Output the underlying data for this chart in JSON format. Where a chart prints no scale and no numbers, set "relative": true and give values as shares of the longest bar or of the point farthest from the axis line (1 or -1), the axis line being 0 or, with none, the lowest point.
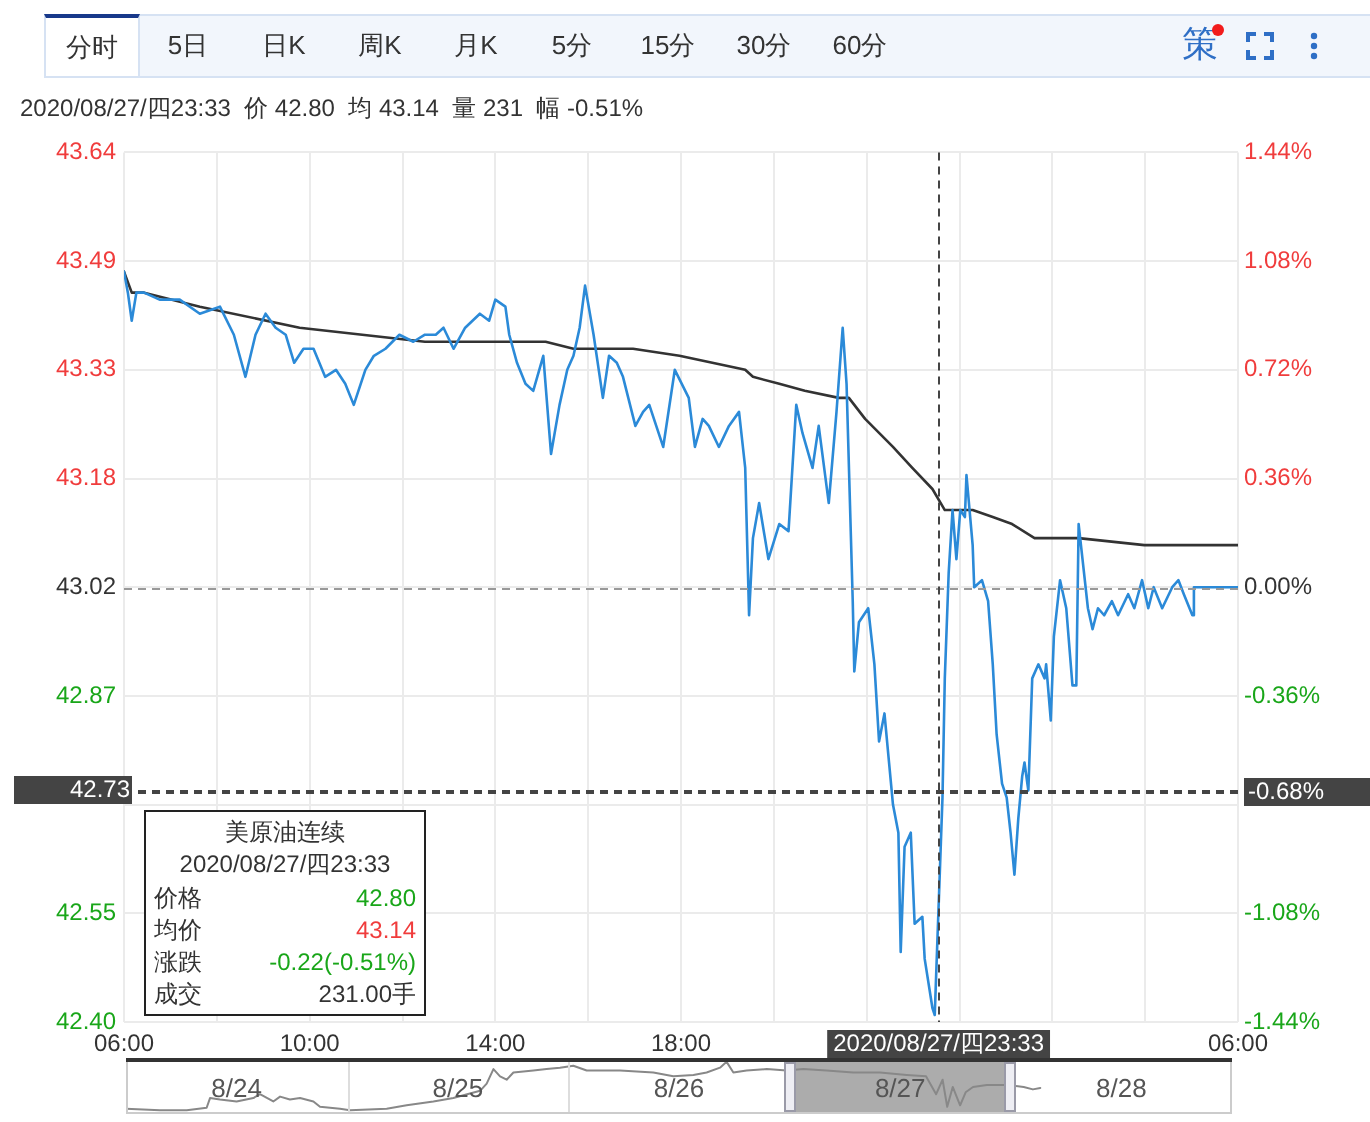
{
  "chart_data": [
    {
      "type": "line",
      "series": [
        {
          "color": "#2b8ad8",
          "x": [
            "2020-08-27T06:00",
            "2020-08-27T06:05",
            "2020-08-27T06:10",
            "2020-08-27T06:16",
            "2020-08-27T06:26",
            "2020-08-27T06:46",
            "2020-08-27T07:12",
            "2020-08-27T07:38",
            "2020-08-27T08:04",
            "2020-08-27T08:22",
            "2020-08-27T08:37",
            "2020-08-27T08:50",
            "2020-08-27T09:03",
            "2020-08-27T09:16",
            "2020-08-27T09:29",
            "2020-08-27T09:40",
            "2020-08-27T09:52",
            "2020-08-27T10:05",
            "2020-08-27T10:20",
            "2020-08-27T10:34",
            "2020-08-27T10:46",
            "2020-08-27T10:57",
            "2020-08-27T11:12",
            "2020-08-27T11:23",
            "2020-08-27T11:38",
            "2020-08-27T11:56",
            "2020-08-27T12:14",
            "2020-08-27T12:29",
            "2020-08-27T12:43",
            "2020-08-27T12:53",
            "2020-08-27T13:06",
            "2020-08-27T13:21",
            "2020-08-27T13:40",
            "2020-08-27T13:52",
            "2020-08-27T14:00",
            "2020-08-27T14:13",
            "2020-08-27T14:18",
            "2020-08-27T14:28",
            "2020-08-27T14:39",
            "2020-08-27T14:49",
            "2020-08-27T15:02",
            "2020-08-27T15:12",
            "2020-08-27T15:23",
            "2020-08-27T15:33",
            "2020-08-27T15:41",
            "2020-08-27T15:49",
            "2020-08-27T15:56",
            "2020-08-27T16:07",
            "2020-08-27T16:19",
            "2020-08-27T16:27",
            "2020-08-27T16:37",
            "2020-08-27T16:45",
            "2020-08-27T17:01",
            "2020-08-27T17:11",
            "2020-08-27T17:19",
            "2020-08-27T17:37",
            "2020-08-27T17:52",
            "2020-08-27T18:10",
            "2020-08-27T18:18",
            "2020-08-27T18:28",
            "2020-08-27T18:36",
            "2020-08-27T18:49",
            "2020-08-27T19:02",
            "2020-08-27T19:15",
            "2020-08-27T19:23",
            "2020-08-27T19:28",
            "2020-08-27T19:33",
            "2020-08-27T19:41",
            "2020-08-27T19:53",
            "2020-08-27T20:07",
            "2020-08-27T20:19",
            "2020-08-27T20:29",
            "2020-08-27T20:37",
            "2020-08-27T20:50",
            "2020-08-27T20:58",
            "2020-08-27T21:11",
            "2020-08-27T21:21",
            "2020-08-27T21:29",
            "2020-08-27T21:34",
            "2020-08-27T21:42",
            "2020-08-27T21:44",
            "2020-08-27T21:50",
            "2020-08-27T22:02",
            "2020-08-27T22:10",
            "2020-08-27T22:16",
            "2020-08-27T22:23",
            "2020-08-27T22:34",
            "2020-08-27T22:41",
            "2020-08-27T22:44",
            "2020-08-27T22:49",
            "2020-08-27T22:57",
            "2020-08-27T23:02",
            "2020-08-27T23:12",
            "2020-08-27T23:15",
            "2020-08-27T23:25",
            "2020-08-27T23:28",
            "2020-08-27T23:38",
            "2020-08-27T23:41",
            "2020-08-27T23:46",
            "2020-08-27T23:51",
            "2020-08-27T23:56",
            "2020-08-28T00:01",
            "2020-08-28T00:07",
            "2020-08-28T00:09",
            "2020-08-28T00:17",
            "2020-08-28T00:19",
            "2020-08-28T00:29",
            "2020-08-28T00:37",
            "2020-08-28T00:43",
            "2020-08-28T00:48",
            "2020-08-28T00:55",
            "2020-08-28T01:01",
            "2020-08-28T01:06",
            "2020-08-28T01:11",
            "2020-08-28T01:16",
            "2020-08-28T01:21",
            "2020-08-28T01:24",
            "2020-08-28T01:29",
            "2020-08-28T01:34",
            "2020-08-28T01:42",
            "2020-08-28T01:50",
            "2020-08-28T01:52",
            "2020-08-28T01:58",
            "2020-08-28T02:02",
            "2020-08-28T02:10",
            "2020-08-28T02:18",
            "2020-08-28T02:26",
            "2020-08-28T02:31",
            "2020-08-28T02:34",
            "2020-08-28T02:39",
            "2020-08-28T02:46",
            "2020-08-28T02:52",
            "2020-08-28T02:59",
            "2020-08-28T03:07",
            "2020-08-28T03:17",
            "2020-08-28T03:25",
            "2020-08-28T03:38",
            "2020-08-28T03:46",
            "2020-08-28T03:56",
            "2020-08-28T04:04",
            "2020-08-28T04:11",
            "2020-08-28T04:22",
            "2020-08-28T04:35",
            "2020-08-28T04:43",
            "2020-08-28T04:50",
            "2020-08-28T05:01",
            "2020-08-28T05:03",
            "2020-08-28T05:14",
            "2020-08-28T06:00"
          ],
          "values": [
            43.47,
            43.44,
            43.4,
            43.44,
            43.44,
            43.43,
            43.43,
            43.41,
            43.42,
            43.38,
            43.32,
            43.38,
            43.41,
            43.39,
            43.38,
            43.34,
            43.36,
            43.36,
            43.32,
            43.33,
            43.31,
            43.28,
            43.33,
            43.35,
            43.36,
            43.38,
            43.37,
            43.38,
            43.38,
            43.39,
            43.36,
            43.39,
            43.41,
            43.4,
            43.43,
            43.42,
            43.38,
            43.34,
            43.31,
            43.3,
            43.35,
            43.21,
            43.28,
            43.33,
            43.35,
            43.39,
            43.45,
            43.38,
            43.29,
            43.35,
            43.34,
            43.32,
            43.25,
            43.27,
            43.28,
            43.22,
            43.33,
            43.29,
            43.22,
            43.26,
            43.25,
            43.22,
            43.25,
            43.27,
            43.19,
            42.98,
            43.09,
            43.14,
            43.06,
            43.11,
            43.1,
            43.28,
            43.24,
            43.19,
            43.25,
            43.14,
            43.27,
            43.39,
            43.31,
            43.0,
            42.9,
            42.97,
            42.99,
            42.91,
            42.8,
            42.84,
            42.71,
            42.67,
            42.5,
            42.65,
            42.67,
            42.54,
            42.55,
            42.49,
            42.42,
            42.41,
            42.72,
            42.89,
            43.04,
            43.13,
            43.06,
            43.13,
            43.12,
            43.18,
            43.08,
            43.02,
            43.03,
            43.0,
            42.91,
            42.81,
            42.74,
            42.72,
            42.67,
            42.61,
            42.69,
            42.75,
            42.77,
            42.73,
            42.89,
            42.91,
            42.89,
            42.91,
            42.83,
            42.95,
            43.03,
            42.99,
            42.88,
            42.88,
            43.11,
            43.06,
            42.99,
            42.96,
            42.99,
            42.98,
            43.0,
            42.98,
            43.01,
            42.99,
            43.03,
            42.99,
            43.02,
            42.99,
            43.02,
            43.03,
            43.01,
            42.98,
            43.02,
            43.02,
            43.02
          ]
        },
        {
          "color": "#333333",
          "x": [
            "2020-08-27T06:00",
            "2020-08-27T06:10",
            "2020-08-27T06:26",
            "2020-08-27T07:38",
            "2020-08-27T09:47",
            "2020-08-27T12:29",
            "2020-08-27T14:13",
            "2020-08-27T15:05",
            "2020-08-27T15:41",
            "2020-08-27T16:58",
            "2020-08-27T17:58",
            "2020-08-27T19:23",
            "2020-08-27T19:33",
            "2020-08-27T20:07",
            "2020-08-27T20:40",
            "2020-08-27T21:24",
            "2020-08-27T21:37",
            "2020-08-27T21:58",
            "2020-08-27T22:34",
            "2020-08-27T22:59",
            "2020-08-27T23:25",
            "2020-08-27T23:41",
            "2020-08-28T00:17",
            "2020-08-28T00:43",
            "2020-08-28T01:08",
            "2020-08-28T01:37",
            "2020-08-28T02:34",
            "2020-08-28T03:59",
            "2020-08-28T06:00"
          ],
          "values": [
            43.47,
            43.44,
            43.44,
            43.42,
            43.39,
            43.37,
            43.37,
            43.37,
            43.36,
            43.36,
            43.35,
            43.33,
            43.32,
            43.31,
            43.3,
            43.29,
            43.29,
            43.26,
            43.22,
            43.19,
            43.16,
            43.13,
            43.13,
            43.12,
            43.11,
            43.09,
            43.09,
            43.08,
            43.08
          ]
        }
      ],
      "xlim": [
        "2020-08-27T06:00",
        "2020-08-28T06:00"
      ],
      "xticks": [
        {
          "value": "2020-08-27T06:00",
          "label": "06:00"
        },
        {
          "value": "2020-08-27T08:00",
          "label": null
        },
        {
          "value": "2020-08-27T10:00",
          "label": "10:00"
        },
        {
          "value": "2020-08-27T12:00",
          "label": null
        },
        {
          "value": "2020-08-27T14:00",
          "label": "14:00"
        },
        {
          "value": "2020-08-27T16:00",
          "label": null
        },
        {
          "value": "2020-08-27T18:00",
          "label": "18:00"
        },
        {
          "value": "2020-08-27T20:00",
          "label": null
        },
        {
          "value": "2020-08-27T22:00",
          "label": null
        },
        {
          "value": "2020-08-28T00:00",
          "label": null
        },
        {
          "value": "2020-08-28T02:00",
          "label": null
        },
        {
          "value": "2020-08-28T04:00",
          "label": null
        },
        {
          "value": "2020-08-28T06:00",
          "label": "06:00"
        }
      ],
      "ylim": [
        42.4,
        43.64
      ],
      "yticks": [
        {
          "value": 42.4,
          "label": "42.40"
        },
        {
          "value": 42.555,
          "label": "42.55"
        },
        {
          "value": 42.71,
          "label": null
        },
        {
          "value": 42.865,
          "label": "42.87"
        },
        43.02,
        {
          "value": 43.175,
          "label": "43.18"
        },
        43.33,
        {
          "value": 43.485,
          "label": "43.49"
        },
        43.64
      ],
      "y2lim": [
        -1.44,
        1.44
      ],
      "y2ticks": [
        {
          "value": -1.44,
          "label": "-1.44%"
        },
        {
          "value": -1.08,
          "label": "-1.08%"
        },
        {
          "value": -0.72,
          "label": null
        },
        {
          "value": -0.36,
          "label": "-0.36%"
        },
        {
          "value": 0,
          "label": "0.00%"
        },
        {
          "value": 0.36,
          "label": "0.36%"
        },
        {
          "value": 0.72,
          "label": "0.72%"
        },
        {
          "value": 1.08,
          "label": "1.08%"
        },
        {
          "value": 1.44,
          "label": "1.44%"
        }
      ],
      "grid": true,
      "marker": "none",
      "ref_lines": [
        {
          "axis": "y",
          "value": 43.02,
          "color": "#999999",
          "line_style": "dashed"
        },
        {
          "axis": "x",
          "value": "2020-08-27T23:33",
          "label": "2020/08/27/四23:33",
          "color": "#444444",
          "line_style": "dashed"
        },
        {
          "axis": "y",
          "value": 42.73,
          "label": "42.73",
          "color": "#444444",
          "line_style": "dashed"
        },
        {
          "axis": "y2",
          "value": -0.68,
          "label": "-0.68%",
          "color": "#444444",
          "line_style": "dashed"
        }
      ],
      "annotations": [
        "分时",
        "5日",
        "日K",
        "周K",
        "月K",
        "5分",
        "15分",
        "30分",
        "60分",
        "策",
        "2020/08/27/四23:33  价 42.80  均 43.14  量 231  幅 -0.51%",
        "美原油连续",
        "2020/08/27/四23:33",
        "价格",
        "42.80",
        "均价",
        "43.14",
        "涨跌",
        "-0.22(-0.51%)",
        "成交",
        "231.00手"
      ]
    },
    {
      "type": "line",
      "relative": true,
      "x": [
        "2020-08-24T06:00",
        "2020-08-24T09:41",
        "2020-08-24T12:35",
        "2020-08-24T14:45",
        "2020-08-24T15:07",
        "2020-08-24T16:12",
        "2020-08-24T18:00",
        "2020-08-24T19:49",
        "2020-08-24T20:32",
        "2020-08-24T21:59",
        "2020-08-24T22:43",
        "2020-08-24T23:47",
        "2020-08-25T00:53",
        "2020-08-25T02:20",
        "2020-08-25T03:03",
        "2020-08-25T05:13",
        "2020-08-25T06:18",
        "2020-08-25T10:17",
        "2020-08-25T12:27",
        "2020-08-25T15:21",
        "2020-08-25T17:31",
        "2020-08-25T20:25",
        "2020-08-25T21:08",
        "2020-08-25T21:52",
        "2020-08-25T22:35",
        "2020-08-25T23:18",
        "2020-08-26T00:02",
        "2020-08-26T02:12",
        "2020-08-26T03:38",
        "2020-08-26T05:05",
        "2020-08-26T06:32",
        "2020-08-26T07:59",
        "2020-08-26T11:36",
        "2020-08-26T15:13",
        "2020-08-26T17:23",
        "2020-08-26T19:34",
        "2020-08-26T21:00",
        "2020-08-26T22:27",
        "2020-08-26T23:10",
        "2020-08-26T23:54",
        "2020-08-27T01:20",
        "2020-08-27T03:31",
        "2020-08-27T05:41",
        "2020-08-27T07:29",
        "2020-08-27T10:00",
        "2020-08-27T12:54",
        "2020-08-27T15:48",
        "2020-08-27T18:42",
        "2020-08-27T20:48",
        "2020-08-27T21:54",
        "2020-08-27T22:36",
        "2020-08-27T23:06",
        "2020-08-27T23:42",
        "2020-08-28T00:30",
        "2020-08-28T01:06",
        "2020-08-28T01:54",
        "2020-08-28T03:24",
        "2020-08-28T05:30",
        "2020-08-28T07:24",
        "2020-08-28T08:24",
        "2020-08-28T09:12"
      ],
      "series": [
        {
          "color": "#888888",
          "values": [
            0.03,
            0,
            0,
            0.05,
            0.25,
            0.22,
            0.18,
            0.25,
            0.33,
            0.18,
            0.28,
            0.22,
            0.25,
            0.18,
            0.07,
            0.03,
            0,
            0.03,
            0.1,
            0.18,
            0.25,
            0.4,
            0.55,
            0.85,
            0.7,
            0.63,
            0.78,
            0.82,
            0.85,
            0.88,
            0.92,
            0.82,
            0.82,
            0.78,
            0.7,
            0.73,
            0.78,
            0.88,
            1,
            0.78,
            0.82,
            0.85,
            0.82,
            0.85,
            0.82,
            0.78,
            0.78,
            0.73,
            0.7,
            0.33,
            0.63,
            0.07,
            0.48,
            0.1,
            0.37,
            0.48,
            0.52,
            0.52,
            0.48,
            0.43,
            0.46
          ]
        }
      ],
      "xlim": [
        "2020-08-24T06:00",
        "2020-08-29T06:00"
      ],
      "xticks": [
        {
          "value": "2020-08-24T18:00",
          "label": "8/24"
        },
        {
          "value": "2020-08-25T18:00",
          "label": "8/25"
        },
        {
          "value": "2020-08-26T18:00",
          "label": "8/26"
        },
        {
          "value": "2020-08-27T18:00",
          "label": "8/27"
        },
        {
          "value": "2020-08-28T18:00",
          "label": "8/28"
        }
      ],
      "marker": "none",
      "ref_lines": [
        {
          "axis": "x",
          "value": "2020-08-25T06:00",
          "color": "#dddddd"
        },
        {
          "axis": "x",
          "value": "2020-08-26T06:00",
          "color": "#dddddd"
        }
      ],
      "bands": [
        {
          "axis": "x",
          "from": "2020-08-27T06:00",
          "to": "2020-08-28T06:00",
          "color": "#808080"
        }
      ]
    }
  ]
}
